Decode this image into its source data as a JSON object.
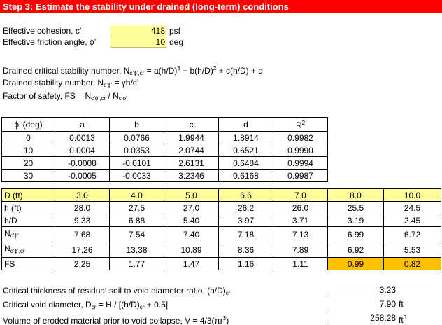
{
  "banner": "Step 3: Estimate the stability under drained (long-term) conditions",
  "inputs": {
    "cohesion_label": "Effective cohesion, c’",
    "cohesion_value": "418",
    "cohesion_unit": "psf",
    "friction_label": "Effective friction angle, ϕ’",
    "friction_value": "10",
    "friction_unit": "deg"
  },
  "equations": {
    "critical_prefix": "Drained critical stability number, N",
    "critical_sub": "c’ϕ’,cr",
    "critical_eq": " = a(h/D)",
    "critical_eq_sup": "3",
    "critical_eq2": " − b(h/D)",
    "critical_eq2_sup": "2",
    "critical_eq3": " + c(h/D) + d",
    "drained_prefix": "Drained stability number, N",
    "drained_sub": "c’ϕ’",
    "drained_eq": " = γh/c’",
    "fs_prefix": "Factor of safety, FS = N",
    "fs_sub1": "c’ϕ’,cr",
    "fs_mid": " / N",
    "fs_sub2": "c’ϕ’"
  },
  "coef_table": {
    "headers": [
      "ϕ’ (deg)",
      "a",
      "b",
      "c",
      "d",
      "R"
    ],
    "r_sup": "2",
    "rows": [
      [
        "0",
        "0.0013",
        "0.0766",
        "1.9944",
        "1.8914",
        "0.9982"
      ],
      [
        "10",
        "0.0004",
        "0.0353",
        "2.0744",
        "0.6521",
        "0.9990"
      ],
      [
        "20",
        "-0.0008",
        "-0.0101",
        "2.6131",
        "0.6484",
        "0.9994"
      ],
      [
        "30",
        "-0.0005",
        "-0.0033",
        "3.2346",
        "0.6168",
        "0.9987"
      ]
    ]
  },
  "calc_table": {
    "labels": {
      "d": "D (ft)",
      "h": "h (ft)",
      "hd": "h/D",
      "n_prefix": "N",
      "n_sub": "c’ϕ’",
      "ncr_prefix": "N",
      "ncr_sub": "c’ϕ’,cr",
      "fs": "FS"
    },
    "D": [
      "3.0",
      "4.0",
      "5.0",
      "6.6",
      "7.0",
      "8.0",
      "10.0"
    ],
    "h": [
      "28.0",
      "27.5",
      "27.0",
      "26.2",
      "26.0",
      "25.5",
      "24.5"
    ],
    "hD": [
      "9.33",
      "6.88",
      "5.40",
      "3.97",
      "3.71",
      "3.19",
      "2.45"
    ],
    "N": [
      "7.68",
      "7.54",
      "7.40",
      "7.18",
      "7.13",
      "6.99",
      "6.72"
    ],
    "Ncr": [
      "17.26",
      "13.38",
      "10.89",
      "8.36",
      "7.89",
      "6.92",
      "5.53"
    ],
    "FS": [
      "2.25",
      "1.77",
      "1.47",
      "1.16",
      "1.11",
      "0.99",
      "0.82"
    ],
    "fs_highlight_color": "#ffc000"
  },
  "results": {
    "ratio_label": "Critical thickness of residual soil to void diameter ratio, (h/D)",
    "ratio_sub": "cr",
    "ratio_value": "3.23",
    "dcr_label": "Critical void diameter, D",
    "dcr_sub": "cr",
    "dcr_eq": " = H / [(h/D)",
    "dcr_sub2": "cr",
    "dcr_eq2": " + 0.5]",
    "dcr_value": "7.90",
    "dcr_unit": "ft",
    "vol_label": "Volume of eroded material prior to void collapse, V = 4/3(πr",
    "vol_sup": "3",
    "vol_close": ")",
    "vol_value": "258.28",
    "vol_unit": "ft",
    "vol_unit_sup": "3"
  }
}
